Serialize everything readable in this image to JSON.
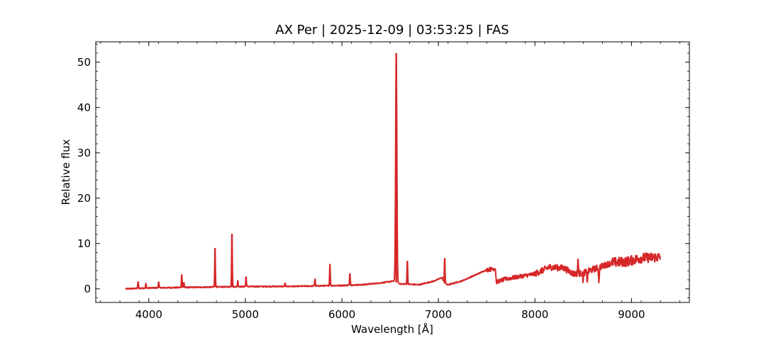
{
  "chart_data": {
    "type": "line",
    "title": "AX Per | 2025-12-09 | 03:53:25 | FAS",
    "xlabel": "Wavelength [Å]",
    "ylabel": "Relative flux",
    "xlim": [
      3450,
      9600
    ],
    "ylim": [
      -3,
      54.5
    ],
    "x_ticks": [
      4000,
      5000,
      6000,
      7000,
      8000,
      9000
    ],
    "y_ticks": [
      0,
      10,
      20,
      30,
      40,
      50
    ],
    "grid": false,
    "series_color": "#d62728",
    "continuum": [
      [
        3760,
        0.0
      ],
      [
        4000,
        0.2
      ],
      [
        4500,
        0.35
      ],
      [
        5000,
        0.5
      ],
      [
        5500,
        0.55
      ],
      [
        6000,
        0.75
      ],
      [
        6200,
        0.9
      ],
      [
        6400,
        1.3
      ],
      [
        6530,
        1.7
      ],
      [
        6600,
        1.1
      ],
      [
        6800,
        0.9
      ],
      [
        6950,
        1.7
      ],
      [
        7040,
        2.5
      ],
      [
        7060,
        1.2
      ],
      [
        7100,
        0.9
      ],
      [
        7250,
        1.8
      ],
      [
        7500,
        4.2
      ],
      [
        7590,
        4.5
      ],
      [
        7600,
        1.5
      ],
      [
        7700,
        2.2
      ],
      [
        8000,
        3.3
      ],
      [
        8150,
        4.8
      ],
      [
        8300,
        4.6
      ],
      [
        8400,
        3.3
      ],
      [
        8500,
        3.5
      ],
      [
        8800,
        5.8
      ],
      [
        8950,
        6.0
      ],
      [
        9100,
        6.8
      ],
      [
        9300,
        7.0
      ]
    ],
    "emission_lines": [
      {
        "x": 3889,
        "y": 1.6
      },
      {
        "x": 3970,
        "y": 1.2
      },
      {
        "x": 4102,
        "y": 1.6
      },
      {
        "x": 4341,
        "y": 3.2
      },
      {
        "x": 4363,
        "y": 1.4
      },
      {
        "x": 4686,
        "y": 9.0
      },
      {
        "x": 4861,
        "y": 12.1
      },
      {
        "x": 4922,
        "y": 1.8
      },
      {
        "x": 5007,
        "y": 2.7
      },
      {
        "x": 5412,
        "y": 1.2
      },
      {
        "x": 5721,
        "y": 2.2
      },
      {
        "x": 5876,
        "y": 5.5
      },
      {
        "x": 6083,
        "y": 3.4
      },
      {
        "x": 6563,
        "y": 52.0
      },
      {
        "x": 6678,
        "y": 6.2
      },
      {
        "x": 7065,
        "y": 6.8
      },
      {
        "x": 8446,
        "y": 6.5
      }
    ],
    "absorption_lines": [
      {
        "x": 8498,
        "y": 2.0
      },
      {
        "x": 8542,
        "y": 1.8
      },
      {
        "x": 8662,
        "y": 1.8
      }
    ]
  }
}
